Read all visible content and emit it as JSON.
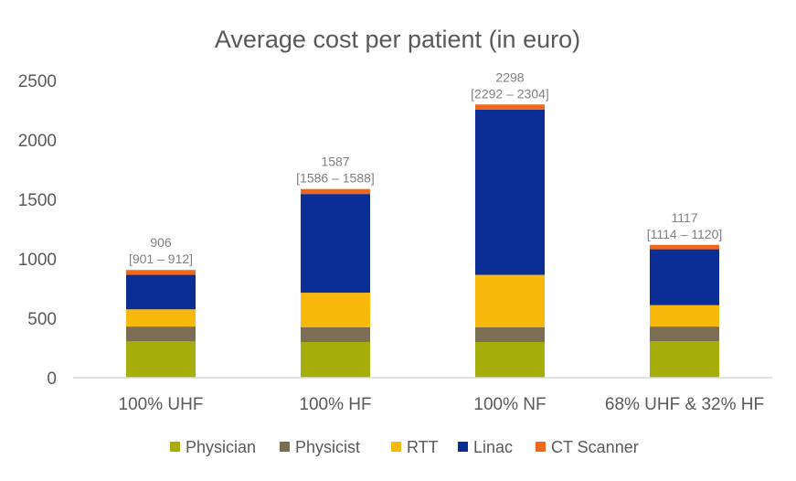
{
  "chart_data": {
    "type": "bar",
    "stacked": true,
    "title": "Average cost per patient (in euro)",
    "categories": [
      "100% UHF",
      "100% HF",
      "100% NF",
      "68% UHF & 32% HF"
    ],
    "series": [
      {
        "name": "Physician",
        "color": "#A6AE0C",
        "values": [
          305,
          300,
          300,
          305
        ]
      },
      {
        "name": "Physicist",
        "color": "#7B6E55",
        "values": [
          125,
          125,
          125,
          125
        ]
      },
      {
        "name": "RTT",
        "color": "#F9B90C",
        "values": [
          145,
          290,
          440,
          180
        ]
      },
      {
        "name": "Linac",
        "color": "#0A2D96",
        "values": [
          290,
          830,
          1390,
          470
        ]
      },
      {
        "name": "CT Scanner",
        "color": "#F2681B",
        "values": [
          41,
          42,
          43,
          37
        ]
      }
    ],
    "totals": [
      "906",
      "1587",
      "2298",
      "1117"
    ],
    "intervals": [
      "[901 – 912]",
      "[1586 – 1588]",
      "[2292 – 2304]",
      "[1114 – 1120]"
    ],
    "y_ticks": [
      "0",
      "500",
      "1000",
      "1500",
      "2000",
      "2500"
    ],
    "ylim": [
      0,
      2500
    ],
    "grid": false,
    "legend_position": "bottom"
  }
}
